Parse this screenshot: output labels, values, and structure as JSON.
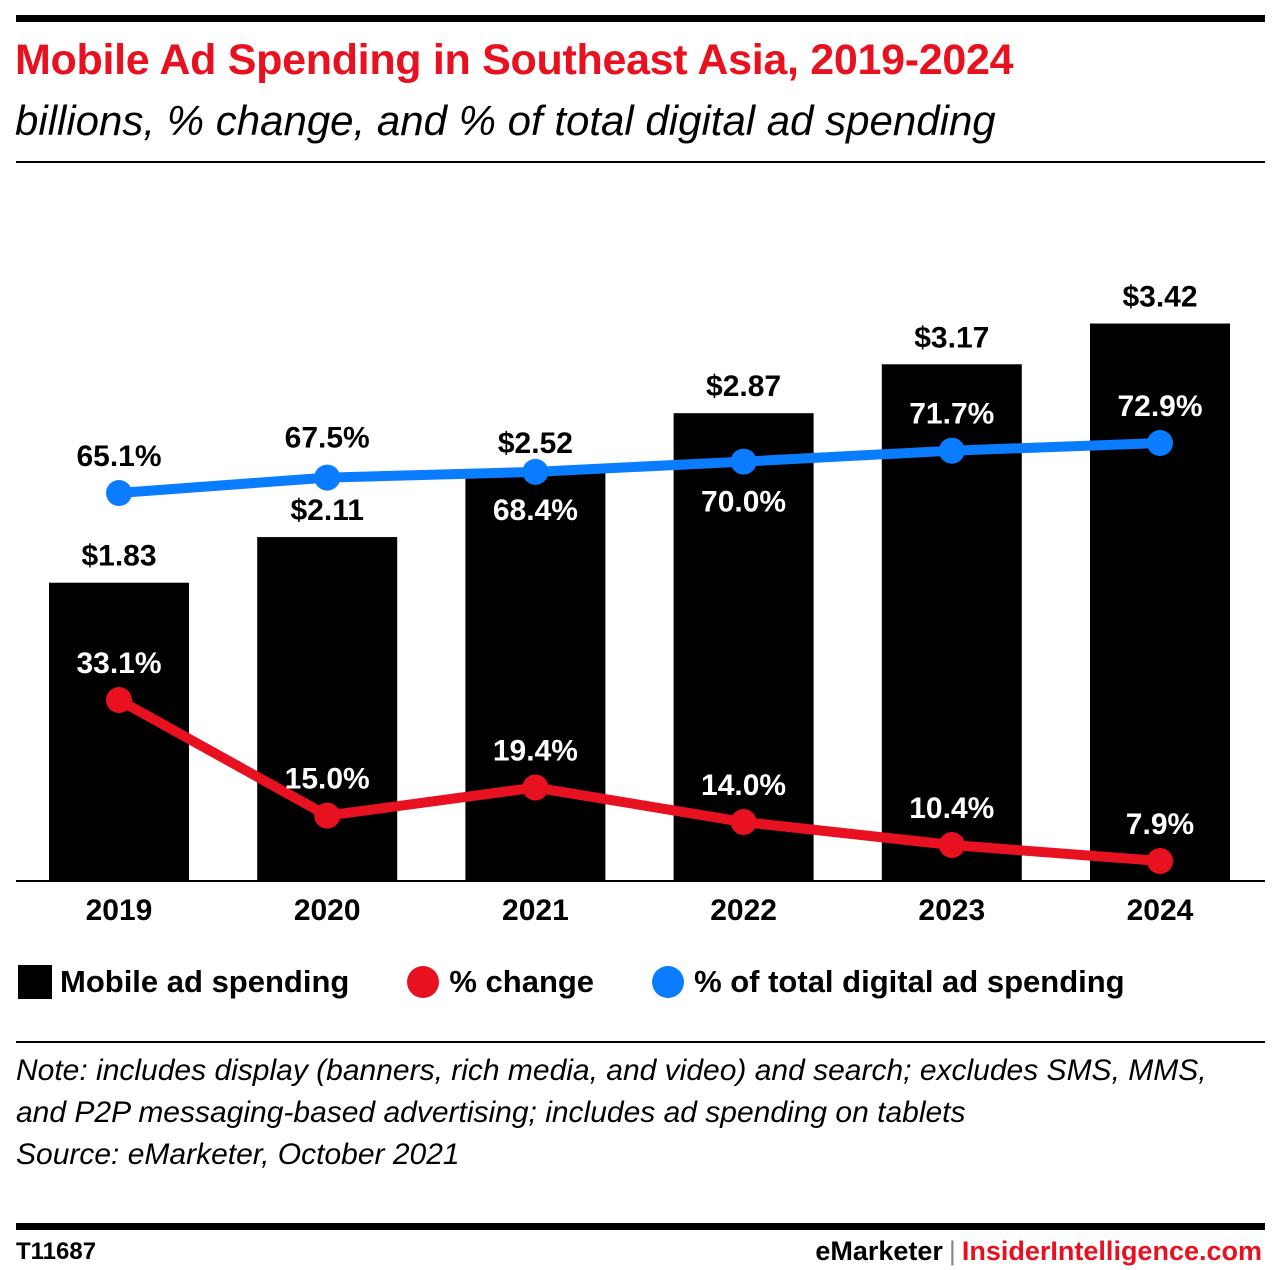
{
  "header": {
    "title": "Mobile Ad Spending in Southeast Asia, 2019-2024",
    "subtitle": "billions, % change, and % of total digital ad spending"
  },
  "colors": {
    "title": "#e8111f",
    "bars": "#000000",
    "change_line": "#e8111f",
    "share_line": "#0a7cff"
  },
  "chart_data": {
    "type": "bar",
    "title": "Mobile Ad Spending in Southeast Asia, 2019-2024",
    "subtitle": "billions, % change, and % of total digital ad spending",
    "xlabel": "",
    "ylabel": "",
    "categories": [
      "2019",
      "2020",
      "2021",
      "2022",
      "2023",
      "2024"
    ],
    "grid": false,
    "legend_position": "bottom",
    "series": [
      {
        "name": "Mobile ad spending",
        "type": "bar",
        "values": [
          1.83,
          2.11,
          2.52,
          2.87,
          3.17,
          3.42
        ],
        "labels": [
          "$1.83",
          "$2.11",
          "$2.52",
          "$2.87",
          "$3.17",
          "$3.42"
        ],
        "color": "#000000"
      },
      {
        "name": "% change",
        "type": "line",
        "values": [
          33.1,
          15.0,
          19.4,
          14.0,
          10.4,
          7.9
        ],
        "labels": [
          "33.1%",
          "15.0%",
          "19.4%",
          "14.0%",
          "10.4%",
          "7.9%"
        ],
        "color": "#e8111f"
      },
      {
        "name": "% of total digital ad spending",
        "type": "line",
        "values": [
          65.1,
          67.5,
          68.4,
          70.0,
          71.7,
          72.9
        ],
        "labels": [
          "65.1%",
          "67.5%",
          "68.4%",
          "70.0%",
          "71.7%",
          "72.9%"
        ],
        "color": "#0a7cff"
      }
    ],
    "ylim": [
      0,
      3.5
    ]
  },
  "legend": {
    "items": [
      {
        "label": "Mobile ad spending"
      },
      {
        "label": "% change"
      },
      {
        "label": "% of total digital ad spending"
      }
    ]
  },
  "footer": {
    "note": "Note: includes display (banners, rich media, and video) and search; excludes SMS, MMS, and P2P messaging-based advertising; includes ad spending on tablets",
    "source": "Source: eMarketer, October 2021",
    "chart_id": "T11687",
    "brand_left": "eMarketer",
    "brand_sep": "|",
    "brand_right": "InsiderIntelligence.com"
  }
}
